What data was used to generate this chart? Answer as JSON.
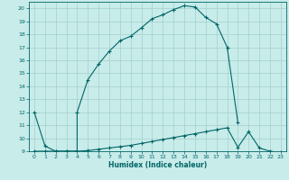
{
  "title": "",
  "xlabel": "Humidex (Indice chaleur)",
  "ylabel": "",
  "background_color": "#c8ecea",
  "grid_color": "#a0d0cc",
  "line_color": "#006666",
  "xlim": [
    -0.5,
    23.5
  ],
  "ylim": [
    9,
    20.5
  ],
  "xticks": [
    0,
    1,
    2,
    3,
    4,
    5,
    6,
    7,
    8,
    9,
    10,
    11,
    12,
    13,
    14,
    15,
    16,
    17,
    18,
    19,
    20,
    21,
    22,
    23
  ],
  "yticks": [
    9,
    10,
    11,
    12,
    13,
    14,
    15,
    16,
    17,
    18,
    19,
    20
  ],
  "curve1_x": [
    0,
    1,
    2,
    3,
    4,
    4,
    5,
    6,
    7,
    8,
    9,
    10,
    11,
    12,
    13,
    14,
    15,
    16,
    17,
    18,
    19
  ],
  "curve1_y": [
    12,
    9.4,
    9.0,
    9.0,
    9.0,
    12.0,
    14.5,
    15.7,
    16.7,
    17.5,
    17.85,
    18.5,
    19.2,
    19.5,
    19.9,
    20.2,
    20.1,
    19.3,
    18.8,
    17.0,
    11.2
  ],
  "curve2_x": [
    0,
    1,
    2,
    3,
    4,
    5,
    6,
    7,
    8,
    9,
    10,
    11,
    12,
    13,
    14,
    15,
    16,
    17,
    18,
    19,
    20,
    21,
    22,
    23
  ],
  "curve2_y": [
    9.0,
    9.0,
    9.0,
    9.0,
    9.0,
    9.05,
    9.15,
    9.25,
    9.35,
    9.45,
    9.6,
    9.75,
    9.9,
    10.05,
    10.2,
    10.35,
    10.5,
    10.65,
    10.8,
    9.3,
    10.5,
    9.25,
    9.0,
    8.9
  ]
}
